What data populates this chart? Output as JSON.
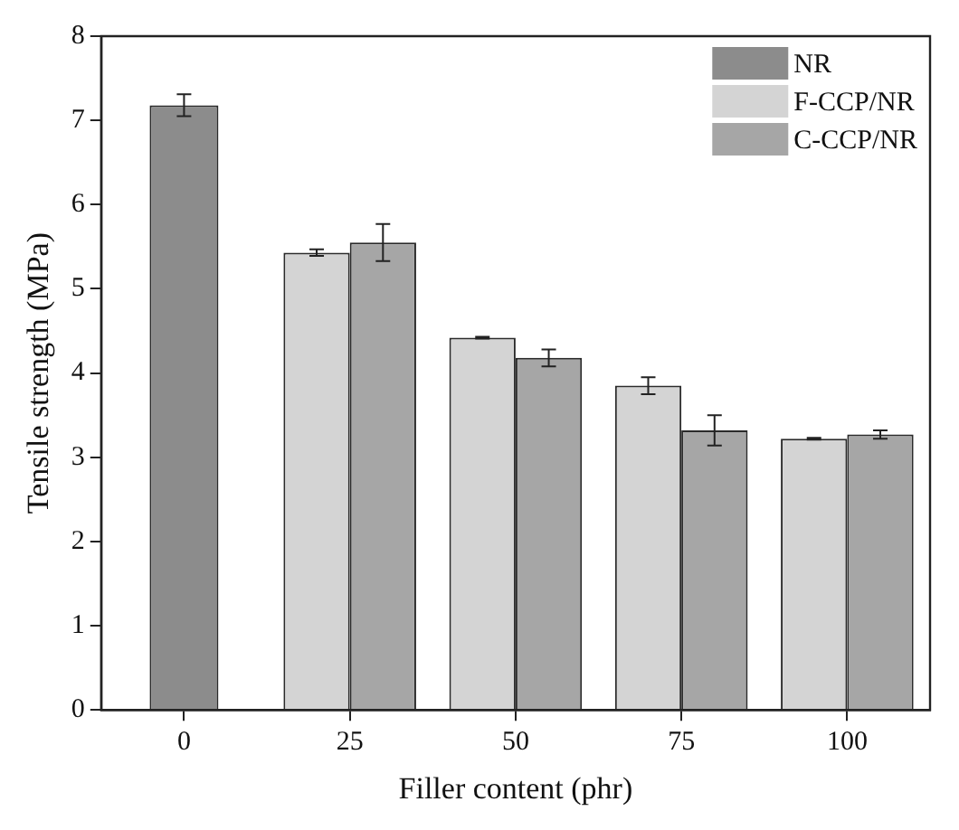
{
  "chart_data": {
    "type": "bar",
    "xlabel": "Filler content (phr)",
    "ylabel": "Tensile strength (MPa)",
    "categories": [
      "0",
      "25",
      "50",
      "75",
      "100"
    ],
    "series": [
      {
        "name": "NR",
        "color": "#8c8c8c",
        "values": [
          7.18,
          null,
          null,
          null,
          null
        ],
        "errors": [
          0.13,
          null,
          null,
          null,
          null
        ]
      },
      {
        "name": "F-CCP/NR",
        "color": "#d4d4d4",
        "values": [
          null,
          5.43,
          4.42,
          3.85,
          3.22
        ],
        "errors": [
          null,
          0.04,
          0.01,
          0.1,
          0.01
        ]
      },
      {
        "name": "C-CCP/NR",
        "color": "#a6a6a6",
        "values": [
          null,
          5.55,
          4.18,
          3.32,
          3.27
        ],
        "errors": [
          null,
          0.22,
          0.1,
          0.18,
          0.05
        ]
      }
    ],
    "ylim": [
      0,
      8
    ],
    "yticks": [
      0,
      1,
      2,
      3,
      4,
      5,
      6,
      7,
      8
    ],
    "grid": false,
    "legend": "top right"
  }
}
